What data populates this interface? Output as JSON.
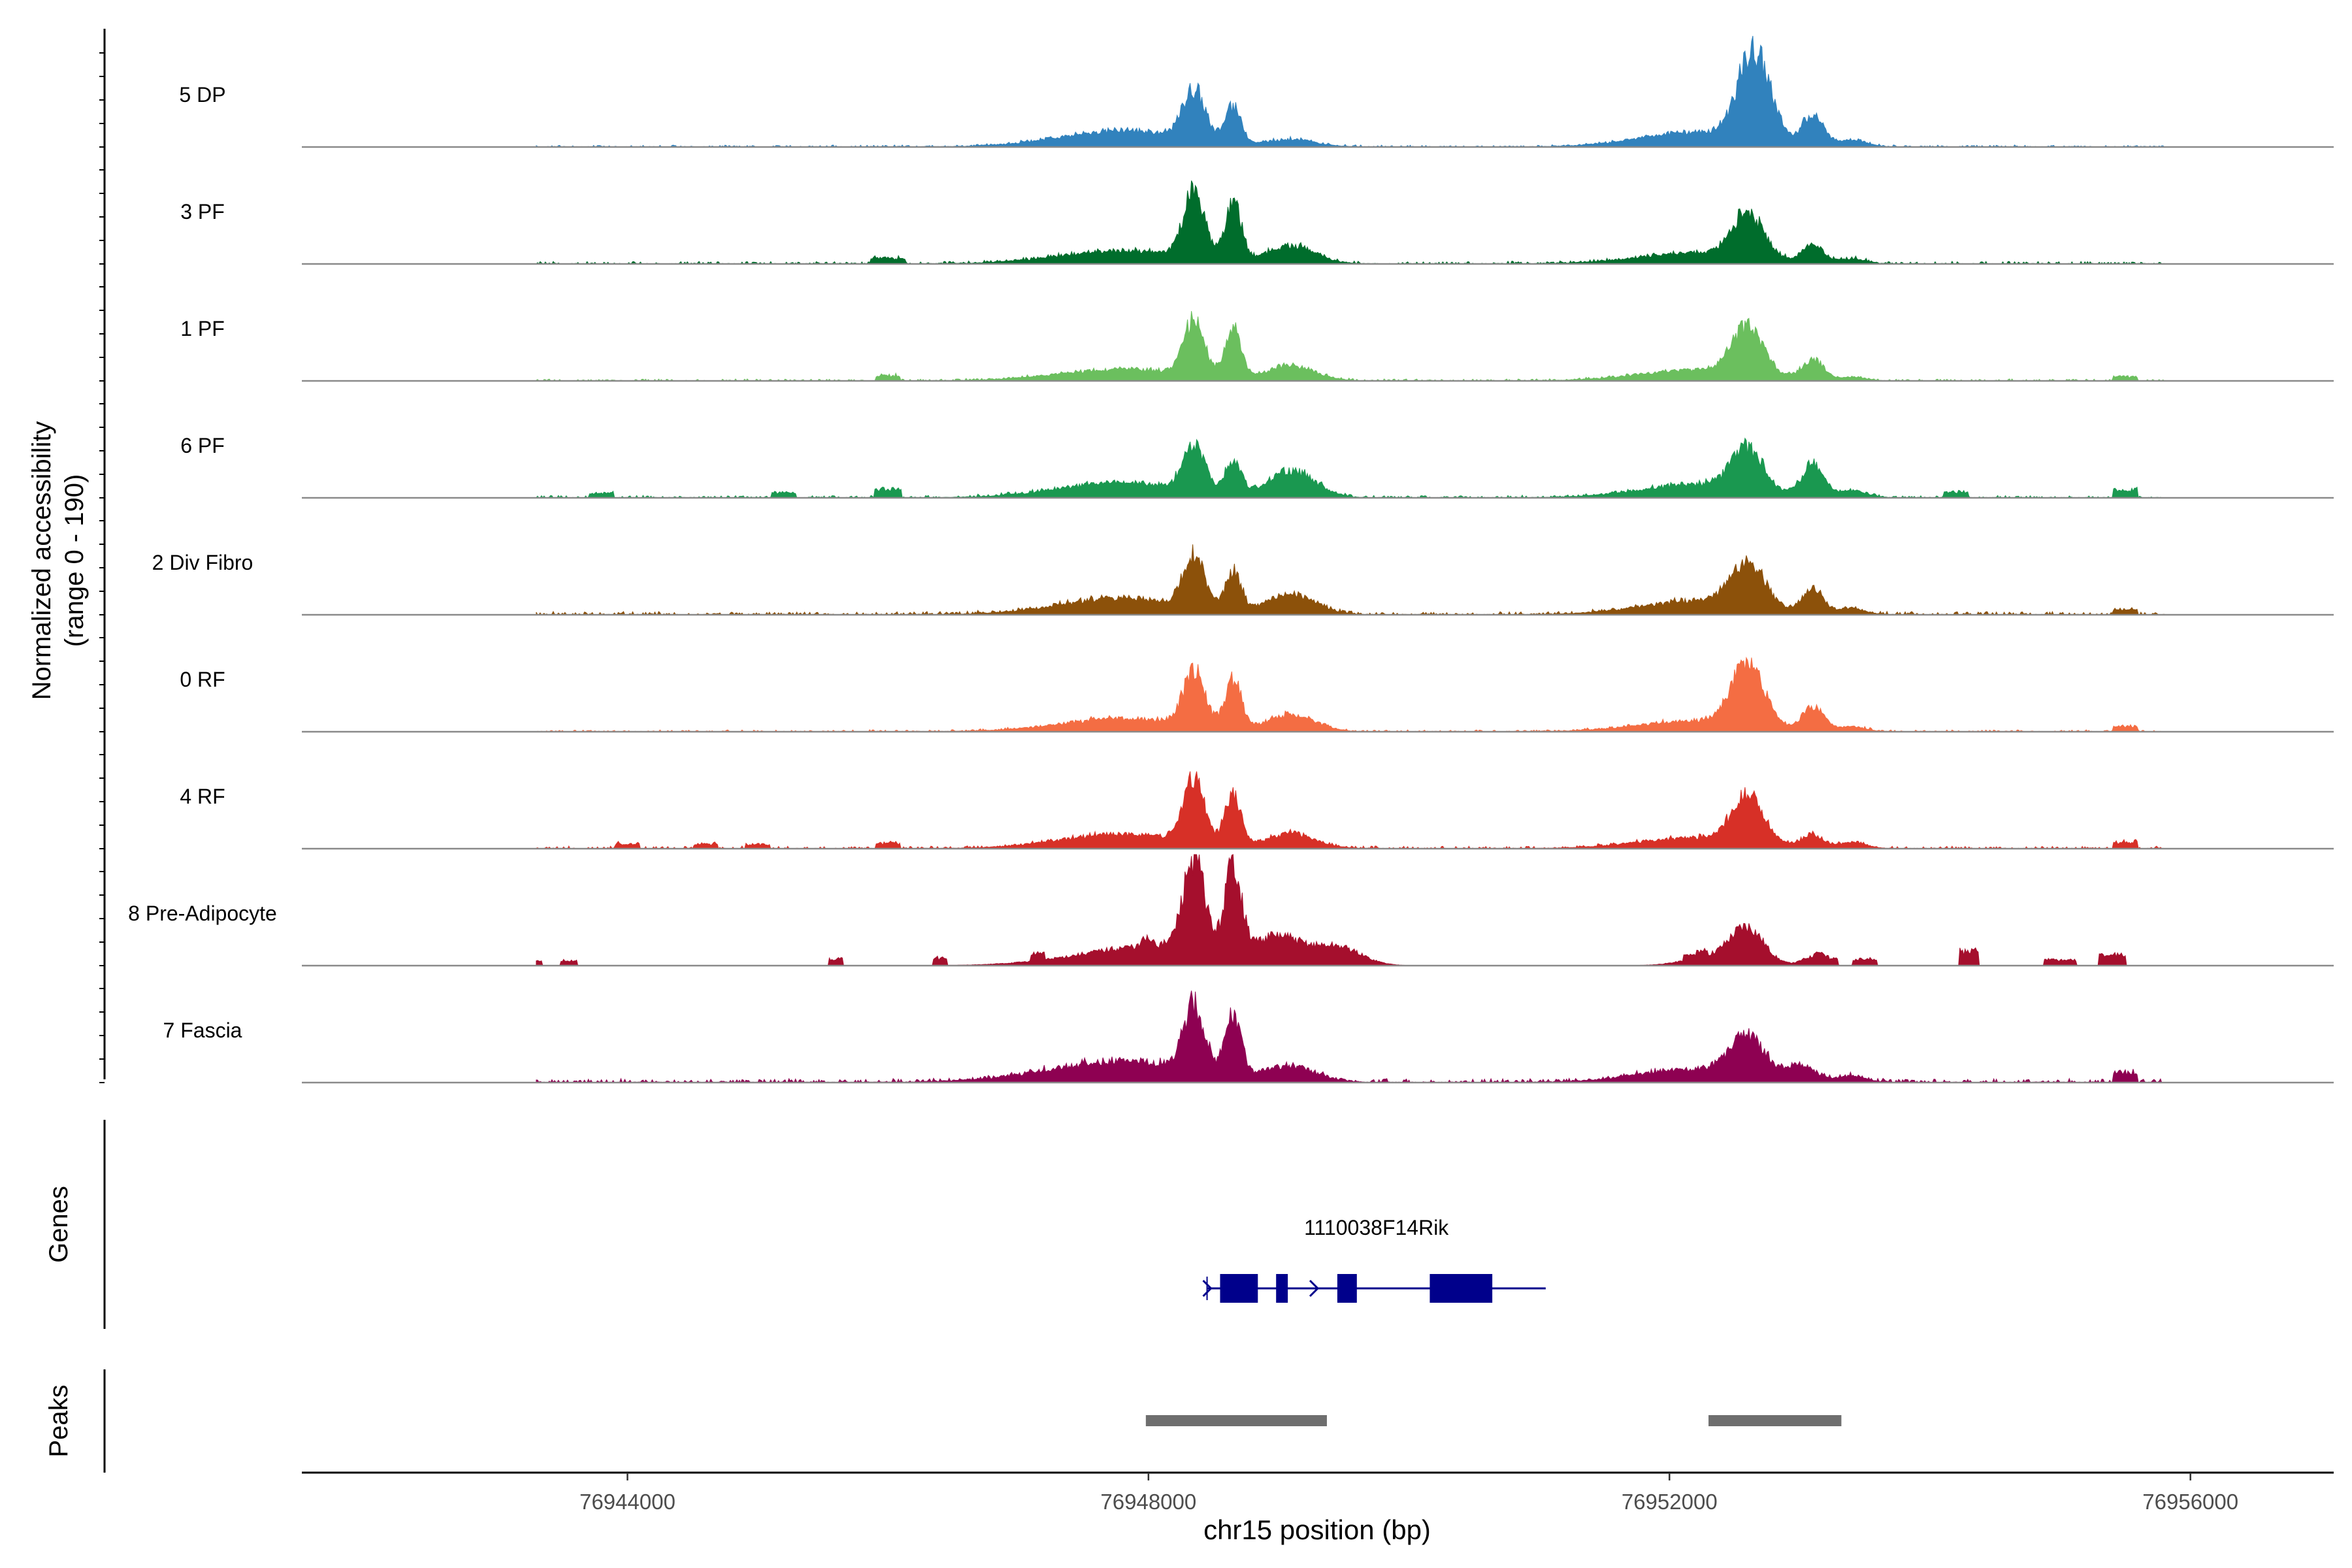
{
  "chart_data": {
    "type": "area",
    "title": "",
    "region": "chr15",
    "xlabel": "chr15 position (bp)",
    "ylabel_line1": "Normalized accessibility",
    "ylabel_line2": "(range 0 - 190)",
    "y_range": [
      0,
      190
    ],
    "x_range": [
      76941500,
      76957100
    ],
    "x_ticks": [
      76944000,
      76948000,
      76952000,
      76956000
    ],
    "x_tick_labels": [
      "76944000",
      "76948000",
      "76952000",
      "76956000"
    ],
    "genes_label": "Genes",
    "peaks_label": "Peaks",
    "signal_extent": [
      76943300,
      76955800
    ],
    "tracks": [
      {
        "name": "5 DP",
        "color": "#3182BD",
        "noise": 3,
        "islands": [],
        "peaks": [
          [
            76947800,
            1000,
            28
          ],
          [
            76948350,
            180,
            85
          ],
          [
            76948650,
            130,
            62
          ],
          [
            76949100,
            380,
            12
          ],
          [
            76952200,
            900,
            25
          ],
          [
            76952650,
            260,
            150
          ],
          [
            76953100,
            170,
            52
          ],
          [
            76953400,
            220,
            12
          ]
        ]
      },
      {
        "name": "3 PF",
        "color": "#006D2C",
        "noise": 4,
        "islands": [
          [
            76946000,
            280,
            10
          ]
        ],
        "peaks": [
          [
            76947800,
            1000,
            22
          ],
          [
            76948350,
            170,
            115
          ],
          [
            76948650,
            130,
            100
          ],
          [
            76949100,
            380,
            30
          ],
          [
            76952200,
            900,
            18
          ],
          [
            76952600,
            260,
            75
          ],
          [
            76953100,
            170,
            30
          ],
          [
            76953400,
            220,
            8
          ]
        ]
      },
      {
        "name": "1 PF",
        "color": "#6BBF5E",
        "noise": 3,
        "islands": [
          [
            76946000,
            200,
            10
          ],
          [
            76955500,
            200,
            8
          ]
        ],
        "peaks": [
          [
            76947800,
            1000,
            20
          ],
          [
            76948350,
            170,
            95
          ],
          [
            76948650,
            130,
            85
          ],
          [
            76949100,
            380,
            25
          ],
          [
            76952200,
            900,
            18
          ],
          [
            76952600,
            260,
            80
          ],
          [
            76953100,
            170,
            35
          ],
          [
            76953400,
            220,
            6
          ]
        ]
      },
      {
        "name": "6 PF",
        "color": "#1A9850",
        "noise": 4,
        "islands": [
          [
            76943800,
            200,
            8
          ],
          [
            76945200,
            200,
            10
          ],
          [
            76946000,
            220,
            16
          ],
          [
            76954200,
            200,
            10
          ],
          [
            76955500,
            200,
            14
          ]
        ],
        "peaks": [
          [
            76947800,
            1000,
            26
          ],
          [
            76948350,
            170,
            80
          ],
          [
            76948650,
            130,
            55
          ],
          [
            76949100,
            380,
            45
          ],
          [
            76952200,
            900,
            22
          ],
          [
            76952600,
            260,
            70
          ],
          [
            76953100,
            170,
            55
          ],
          [
            76953400,
            220,
            12
          ]
        ]
      },
      {
        "name": "2 Div Fibro",
        "color": "#8C510A",
        "noise": 5,
        "islands": [
          [
            76955500,
            200,
            10
          ]
        ],
        "peaks": [
          [
            76947800,
            1000,
            28
          ],
          [
            76948350,
            170,
            90
          ],
          [
            76948650,
            130,
            65
          ],
          [
            76949100,
            380,
            35
          ],
          [
            76952200,
            900,
            22
          ],
          [
            76952600,
            280,
            72
          ],
          [
            76953100,
            170,
            40
          ],
          [
            76953400,
            220,
            10
          ]
        ]
      },
      {
        "name": "0 RF",
        "color": "#F46D43",
        "noise": 3,
        "islands": [
          [
            76955500,
            200,
            10
          ]
        ],
        "peaks": [
          [
            76947800,
            1000,
            22
          ],
          [
            76948350,
            170,
            95
          ],
          [
            76948650,
            130,
            85
          ],
          [
            76949100,
            380,
            28
          ],
          [
            76952200,
            900,
            18
          ],
          [
            76952600,
            260,
            105
          ],
          [
            76953100,
            170,
            40
          ],
          [
            76953400,
            220,
            8
          ]
        ]
      },
      {
        "name": "4 RF",
        "color": "#D73027",
        "noise": 4,
        "islands": [
          [
            76944000,
            200,
            8
          ],
          [
            76944600,
            200,
            8
          ],
          [
            76945000,
            200,
            8
          ],
          [
            76946000,
            200,
            10
          ],
          [
            76955500,
            200,
            12
          ]
        ],
        "peaks": [
          [
            76947800,
            1000,
            24
          ],
          [
            76948350,
            170,
            105
          ],
          [
            76948650,
            130,
            85
          ],
          [
            76949100,
            380,
            25
          ],
          [
            76952200,
            900,
            18
          ],
          [
            76952600,
            260,
            78
          ],
          [
            76953100,
            170,
            22
          ],
          [
            76953400,
            220,
            10
          ]
        ]
      },
      {
        "name": "8 Pre-Adipocyte",
        "color": "#A50F2D",
        "noise": 0,
        "islands": [
          [
            76943300,
            100,
            10
          ],
          [
            76943550,
            140,
            10
          ],
          [
            76945600,
            120,
            14
          ],
          [
            76946400,
            120,
            14
          ],
          [
            76947150,
            120,
            14
          ],
          [
            76948000,
            120,
            12
          ],
          [
            76952200,
            200,
            10
          ],
          [
            76953200,
            200,
            12
          ],
          [
            76953500,
            200,
            12
          ],
          [
            76954300,
            150,
            28
          ],
          [
            76955000,
            250,
            12
          ],
          [
            76955400,
            220,
            22
          ]
        ],
        "peaks": [
          [
            76948100,
            1200,
            35
          ],
          [
            76948350,
            170,
            155
          ],
          [
            76948650,
            130,
            150
          ],
          [
            76949000,
            380,
            40
          ],
          [
            76949450,
            380,
            30
          ],
          [
            76952400,
            500,
            18
          ],
          [
            76952600,
            260,
            55
          ],
          [
            76953100,
            170,
            15
          ]
        ]
      },
      {
        "name": "7 Fascia",
        "color": "#8E0152",
        "noise": 6,
        "islands": [
          [
            76955500,
            200,
            18
          ]
        ],
        "peaks": [
          [
            76947800,
            1200,
            35
          ],
          [
            76948350,
            170,
            110
          ],
          [
            76948650,
            130,
            105
          ],
          [
            76949100,
            380,
            25
          ],
          [
            76952200,
            900,
            22
          ],
          [
            76952600,
            260,
            70
          ],
          [
            76953000,
            250,
            25
          ],
          [
            76953400,
            220,
            10
          ]
        ]
      }
    ],
    "genes": [
      {
        "name": "1110038F14Rik",
        "strand": "+",
        "span": [
          76948450,
          76951050
        ],
        "exons": [
          [
            76948550,
            76948840
          ],
          [
            76948980,
            76949070
          ],
          [
            76949450,
            76949600
          ],
          [
            76950160,
            76950640
          ]
        ],
        "arrows": [
          76948480,
          76949300
        ]
      }
    ],
    "peak_regions": [
      [
        76947980,
        76949370
      ],
      [
        76952300,
        76953320
      ]
    ]
  }
}
